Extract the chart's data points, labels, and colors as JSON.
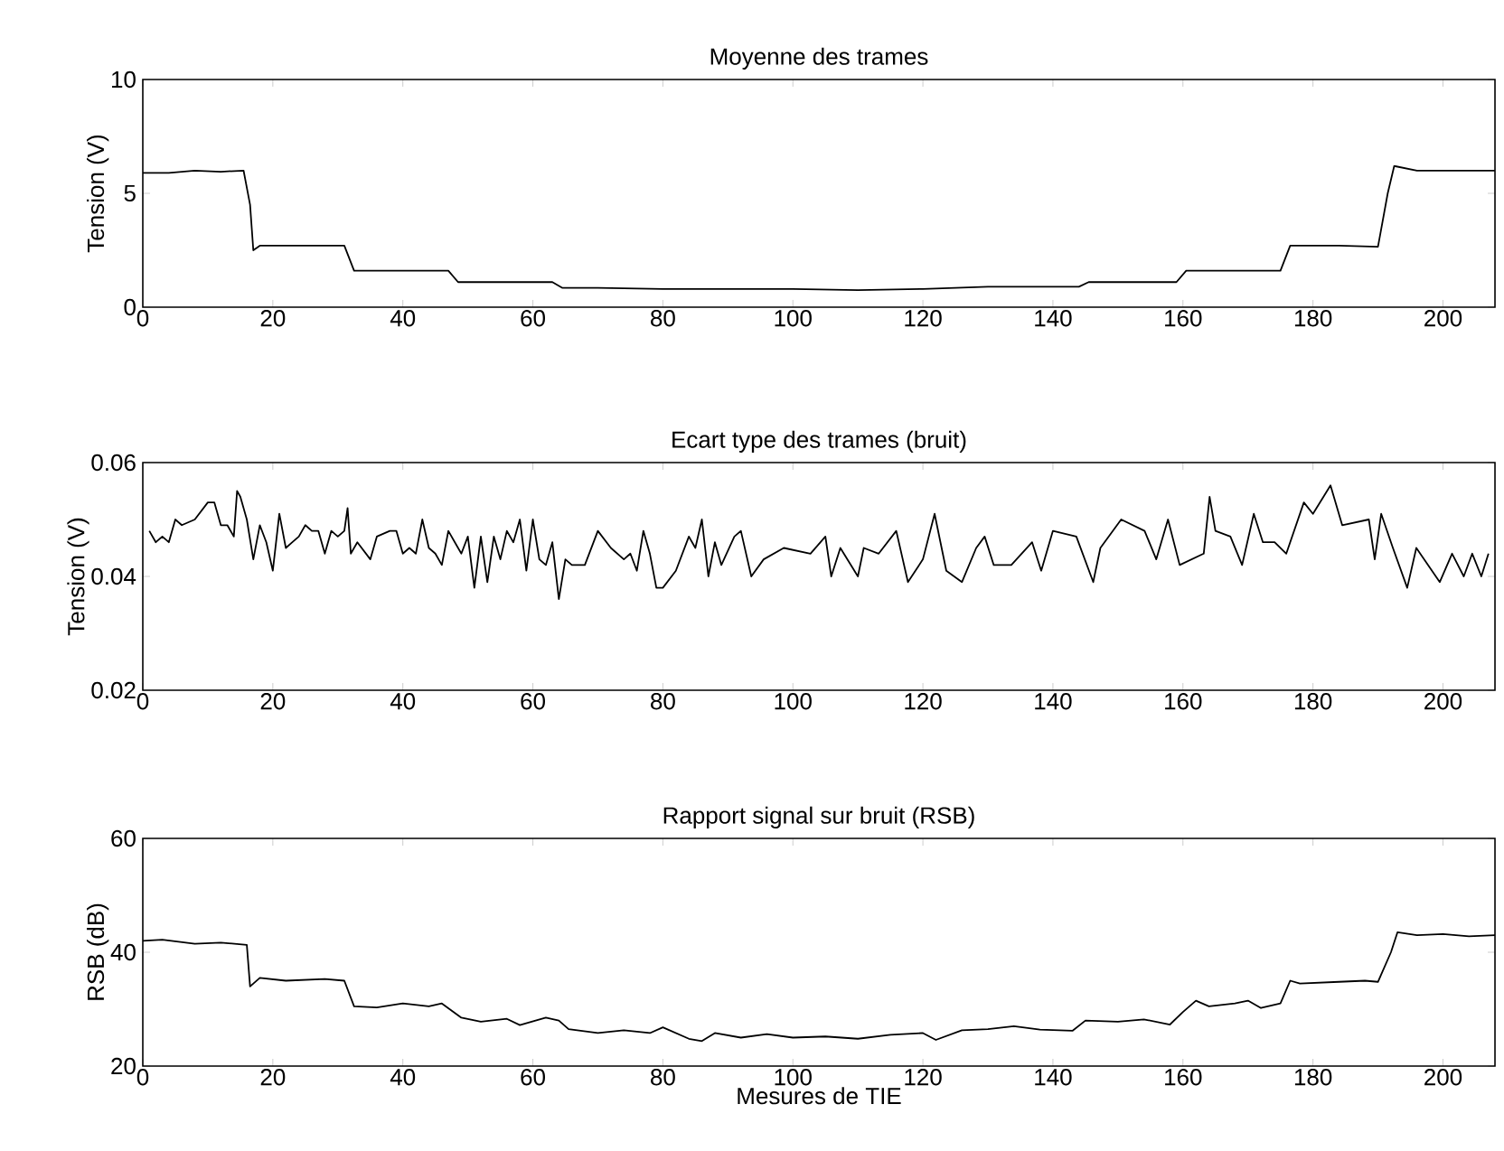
{
  "chart_data": [
    {
      "type": "line",
      "title": "Moyenne des trames",
      "ylabel": "Tension (V)",
      "xlim": [
        0,
        208
      ],
      "ylim": [
        0,
        10
      ],
      "xticks": [
        0,
        20,
        40,
        60,
        80,
        100,
        120,
        140,
        160,
        180,
        200
      ],
      "yticks": [
        0,
        5,
        10
      ],
      "color": "#000000",
      "x": [
        0,
        4,
        8,
        12,
        15.5,
        16.5,
        17,
        18,
        25,
        31,
        32.5,
        40,
        47,
        48.5,
        55,
        63,
        64.5,
        70,
        80,
        100,
        110,
        120,
        130,
        144,
        145.5,
        152,
        159,
        160.5,
        168,
        175,
        176.5,
        184,
        190,
        191.5,
        192.5,
        196,
        200,
        208
      ],
      "values": [
        5.9,
        5.9,
        6.0,
        5.95,
        6.0,
        4.5,
        2.5,
        2.7,
        2.7,
        2.7,
        1.6,
        1.6,
        1.6,
        1.1,
        1.1,
        1.1,
        0.85,
        0.85,
        0.8,
        0.8,
        0.75,
        0.8,
        0.9,
        0.9,
        1.1,
        1.1,
        1.1,
        1.6,
        1.6,
        1.6,
        2.7,
        2.7,
        2.65,
        5.0,
        6.2,
        6.0,
        6.0,
        6.0
      ]
    },
    {
      "type": "line",
      "title": "Ecart type des trames (bruit)",
      "ylabel": "Tension (V)",
      "xlim": [
        0,
        208
      ],
      "ylim": [
        0.02,
        0.06
      ],
      "xticks": [
        0,
        20,
        40,
        60,
        80,
        100,
        120,
        140,
        160,
        180,
        200
      ],
      "yticks": [
        0.02,
        0.04,
        0.06
      ],
      "color": "#000000",
      "x": [
        1,
        2,
        3,
        4,
        5,
        6,
        8,
        10,
        11,
        12,
        13,
        14,
        14.5,
        15,
        16,
        17,
        18,
        19,
        20,
        21,
        22,
        23,
        24,
        25,
        26,
        27,
        28,
        29,
        30,
        31,
        31.5,
        32,
        33,
        35,
        36,
        38,
        39,
        40,
        41,
        42,
        43,
        44,
        45,
        46,
        47,
        48,
        49,
        50,
        51,
        52,
        53,
        54,
        55,
        56,
        57,
        58,
        59,
        60,
        61,
        62,
        63,
        64,
        65,
        66,
        68,
        70,
        72,
        74,
        75,
        76,
        77,
        78,
        79,
        80,
        82,
        84,
        85,
        86,
        87,
        88,
        89,
        91,
        92,
        93.6,
        95.5,
        98.6,
        102.7,
        105,
        105.9,
        107.3,
        110,
        110.9,
        113.2,
        115.9,
        117.7,
        120,
        121.8,
        123.6,
        126,
        128.2,
        129.5,
        130.9,
        133.6,
        136.8,
        138.2,
        140,
        143.6,
        146.2,
        147.3,
        150.5,
        154.1,
        155.9,
        157.7,
        159.5,
        163.2,
        164.1,
        165,
        167.3,
        169.1,
        170.9,
        172.3,
        174.1,
        175.9,
        178.6,
        180,
        182.7,
        184.5,
        188.6,
        189.5,
        190.5,
        192.3,
        194.5,
        195.9,
        199.5,
        201.4,
        203.2,
        204.5,
        205.9,
        207
      ],
      "values": [
        0.048,
        0.046,
        0.047,
        0.046,
        0.05,
        0.049,
        0.05,
        0.053,
        0.053,
        0.049,
        0.049,
        0.047,
        0.055,
        0.054,
        0.05,
        0.043,
        0.049,
        0.046,
        0.041,
        0.051,
        0.045,
        0.046,
        0.047,
        0.049,
        0.048,
        0.048,
        0.044,
        0.048,
        0.047,
        0.048,
        0.052,
        0.044,
        0.046,
        0.043,
        0.047,
        0.048,
        0.048,
        0.044,
        0.045,
        0.044,
        0.05,
        0.045,
        0.044,
        0.042,
        0.048,
        0.046,
        0.044,
        0.047,
        0.038,
        0.047,
        0.039,
        0.047,
        0.043,
        0.048,
        0.046,
        0.05,
        0.041,
        0.05,
        0.043,
        0.042,
        0.046,
        0.036,
        0.043,
        0.042,
        0.042,
        0.048,
        0.045,
        0.043,
        0.044,
        0.041,
        0.048,
        0.044,
        0.038,
        0.038,
        0.041,
        0.047,
        0.045,
        0.05,
        0.04,
        0.046,
        0.042,
        0.047,
        0.048,
        0.04,
        0.043,
        0.045,
        0.044,
        0.047,
        0.04,
        0.045,
        0.04,
        0.045,
        0.044,
        0.048,
        0.039,
        0.043,
        0.051,
        0.041,
        0.039,
        0.045,
        0.047,
        0.042,
        0.042,
        0.046,
        0.041,
        0.048,
        0.047,
        0.039,
        0.045,
        0.05,
        0.048,
        0.043,
        0.05,
        0.042,
        0.044,
        0.054,
        0.048,
        0.047,
        0.042,
        0.051,
        0.046,
        0.046,
        0.044,
        0.053,
        0.051,
        0.056,
        0.049,
        0.05,
        0.043,
        0.051,
        0.045,
        0.038,
        0.045,
        0.039,
        0.044,
        0.04,
        0.044,
        0.04,
        0.044
      ]
    },
    {
      "type": "line",
      "title": "Rapport signal sur bruit (RSB)",
      "xlabel": "Mesures de TIE",
      "ylabel": "RSB (dB)",
      "xlim": [
        0,
        208
      ],
      "ylim": [
        20,
        60
      ],
      "xticks": [
        0,
        20,
        40,
        60,
        80,
        100,
        120,
        140,
        160,
        180,
        200
      ],
      "yticks": [
        20,
        40,
        60
      ],
      "color": "#000000",
      "x": [
        0,
        3,
        8,
        12,
        16,
        16.5,
        18,
        22,
        28,
        31,
        32.5,
        36,
        40,
        44,
        46,
        49,
        52,
        56,
        58,
        62,
        64,
        65.5,
        70,
        74,
        78,
        80,
        84,
        86,
        88,
        92,
        96,
        100,
        105,
        110,
        115,
        120,
        122,
        126,
        130,
        134,
        138,
        143,
        145,
        150,
        154,
        158,
        160,
        162,
        164,
        168,
        170,
        172,
        175,
        176.5,
        178,
        184,
        188,
        190,
        192,
        193,
        196,
        200,
        204,
        208
      ],
      "values": [
        42,
        42.2,
        41.5,
        41.7,
        41.3,
        34,
        35.5,
        35,
        35.3,
        35,
        30.5,
        30.3,
        31,
        30.5,
        31,
        28.5,
        27.8,
        28.3,
        27.2,
        28.5,
        28,
        26.5,
        25.8,
        26.3,
        25.8,
        26.8,
        24.8,
        24.4,
        25.8,
        25,
        25.6,
        25,
        25.2,
        24.8,
        25.5,
        25.8,
        24.6,
        26.3,
        26.5,
        27,
        26.4,
        26.2,
        28,
        27.8,
        28.2,
        27.3,
        29.5,
        31.5,
        30.5,
        31,
        31.5,
        30.2,
        31,
        35,
        34.5,
        34.8,
        35,
        34.8,
        40,
        43.5,
        43,
        43.2,
        42.8,
        43
      ]
    }
  ]
}
